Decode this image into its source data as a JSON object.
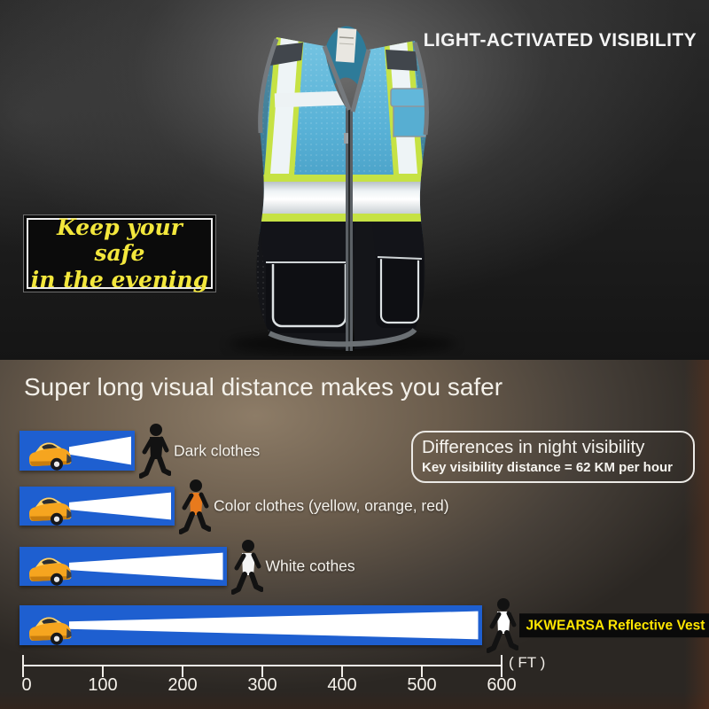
{
  "hero": {
    "headline": "LIGHT-ACTIVATED VISIBILITY",
    "badge": {
      "line1": "Keep your safe",
      "line2": "in the evening"
    },
    "badge_text_color": "#f3e73c",
    "vest_colors": {
      "mesh_blue": "#58b1d6",
      "trim_lime": "#c6e244",
      "reflective_silver": "#eef3f5",
      "bottom_black": "#141519",
      "edge_gray": "#75797d"
    }
  },
  "chart_data": {
    "type": "bar",
    "orientation": "horizontal",
    "title": "Super long visual distance makes you safer",
    "categories": [
      "Dark clothes",
      "Color clothes (yellow, orange, red)",
      "White cothes",
      "JKWEARSA Reflective Vest"
    ],
    "values_ft": [
      140,
      190,
      255,
      575
    ],
    "xlabel": "( FT )",
    "xticks": [
      0,
      100,
      200,
      300,
      400,
      500,
      600
    ],
    "xlim": [
      0,
      600
    ],
    "annotations": [
      "Differences in night visibility",
      "Key visibility distance = 62 KM per hour"
    ],
    "legend": "none",
    "grid": false,
    "bar_color": "#1e5fd0",
    "beam_color": "#ffffff",
    "person_colors": [
      "#121212",
      "#e87a1d",
      "#f4f4f4",
      "#ffffff"
    ],
    "vest_label_bg": "#0a0a0a",
    "vest_label_color": "#ffe600",
    "axis_color": "#f2eee8"
  }
}
